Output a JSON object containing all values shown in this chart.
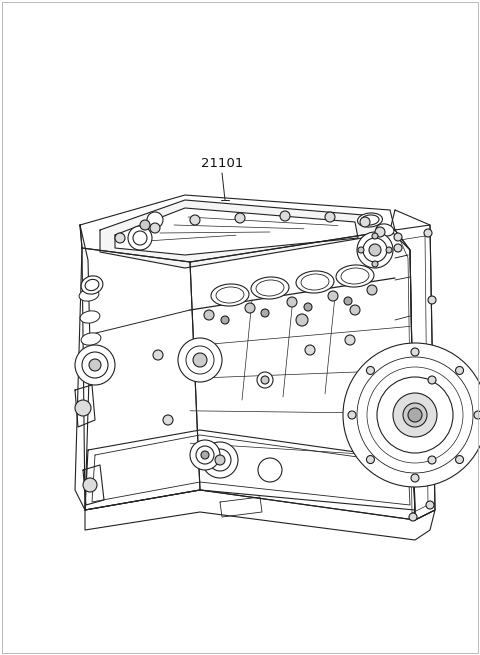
{
  "background_color": "#ffffff",
  "border_color": "#b0b0b0",
  "label_number": "21101",
  "label_fontsize": 9.5,
  "label_color": "#111111",
  "line_color": "#222222",
  "line_width": 0.8,
  "fig_width": 4.8,
  "fig_height": 6.55,
  "dpi": 100
}
